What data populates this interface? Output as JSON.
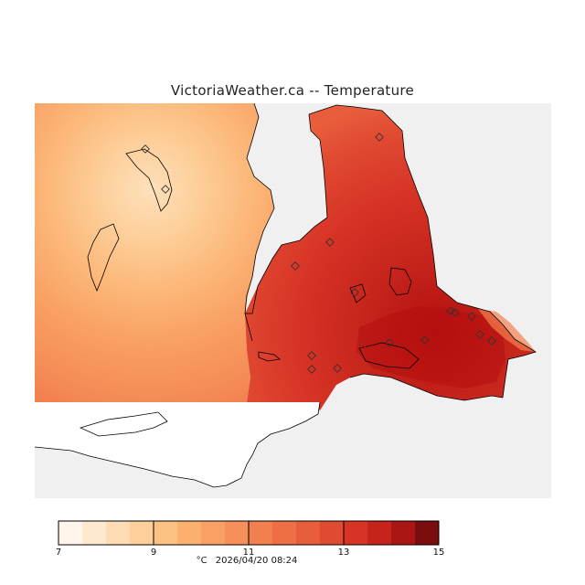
{
  "title": "VictoriaWeather.ca -- Temperature",
  "legend": {
    "min": 7,
    "max": 15,
    "tick_labels": [
      "7",
      "9",
      "11",
      "13",
      "15"
    ],
    "tick_values": [
      7,
      9,
      11,
      13,
      15
    ],
    "bin_count": 16,
    "colors": [
      "#fff5eb",
      "#fee8cf",
      "#fddcb4",
      "#fdcf9a",
      "#fdc283",
      "#fcb06e",
      "#f9a164",
      "#f6905a",
      "#f2804f",
      "#ee6f46",
      "#e85e3c",
      "#e04a32",
      "#d73426",
      "#c5241c",
      "#a91613",
      "#7a0d0d"
    ]
  },
  "footer": {
    "unit": "°C",
    "timestamp": "2026/04/20 08:24"
  },
  "map_colors": {
    "no_data": "#f0f0f0",
    "outline": "#000000",
    "station_marker": "#333333"
  },
  "stations_count": 16
}
